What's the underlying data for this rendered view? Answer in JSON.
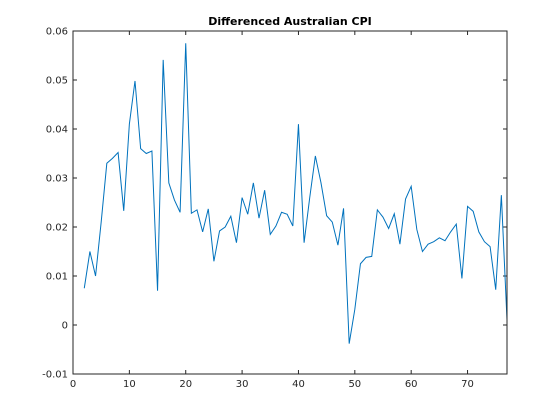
{
  "chart_data": {
    "type": "line",
    "title": "Differenced Australian CPI",
    "xlabel": "",
    "ylabel": "",
    "xlim": [
      0,
      77
    ],
    "ylim": [
      -0.01,
      0.06
    ],
    "x_ticks": [
      0,
      10,
      20,
      30,
      40,
      50,
      60,
      70
    ],
    "y_ticks": [
      -0.01,
      0,
      0.01,
      0.02,
      0.03,
      0.04,
      0.05,
      0.06
    ],
    "x_tick_labels": [
      "0",
      "10",
      "20",
      "30",
      "40",
      "50",
      "60",
      "70"
    ],
    "y_tick_labels": [
      "-0.01",
      "0",
      "0.01",
      "0.02",
      "0.03",
      "0.04",
      "0.05",
      "0.06"
    ],
    "grid": false,
    "line_color": "#0072BD",
    "axis_color": "#262626",
    "series": [
      {
        "x": [
          2,
          3,
          4,
          5,
          6,
          7,
          8,
          9,
          10,
          11,
          12,
          13,
          14,
          15,
          16,
          17,
          18,
          19,
          20,
          21,
          22,
          23,
          24,
          25,
          26,
          27,
          28,
          29,
          30,
          31,
          32,
          33,
          34,
          35,
          36,
          37,
          38,
          39,
          40,
          41,
          42,
          43,
          44,
          45,
          46,
          47,
          48,
          49,
          50,
          51,
          52,
          53,
          54,
          55,
          56,
          57,
          58,
          59,
          60,
          61,
          62,
          63,
          64,
          65,
          66,
          67,
          68,
          69,
          70,
          71,
          72,
          73,
          74,
          75,
          76,
          77
        ],
        "values": [
          0.0075,
          0.015,
          0.01,
          0.021,
          0.033,
          0.034,
          0.0352,
          0.0233,
          0.041,
          0.0498,
          0.036,
          0.035,
          0.0355,
          0.007,
          0.0541,
          0.029,
          0.0255,
          0.023,
          0.0575,
          0.0228,
          0.0235,
          0.019,
          0.0237,
          0.013,
          0.0192,
          0.02,
          0.0222,
          0.0168,
          0.026,
          0.0226,
          0.029,
          0.0218,
          0.0275,
          0.0185,
          0.0202,
          0.023,
          0.0226,
          0.0202,
          0.041,
          0.0168,
          0.026,
          0.0345,
          0.029,
          0.0223,
          0.021,
          0.0163,
          0.0238,
          -0.0038,
          0.0032,
          0.0125,
          0.0138,
          0.014,
          0.0235,
          0.022,
          0.0197,
          0.0227,
          0.0165,
          0.0257,
          0.0283,
          0.0195,
          0.015,
          0.0165,
          0.017,
          0.0178,
          0.0172,
          0.019,
          0.0206,
          0.0095,
          0.0242,
          0.0232,
          0.019,
          0.017,
          0.016,
          0.0072,
          0.0265,
          0.001
        ]
      }
    ]
  }
}
